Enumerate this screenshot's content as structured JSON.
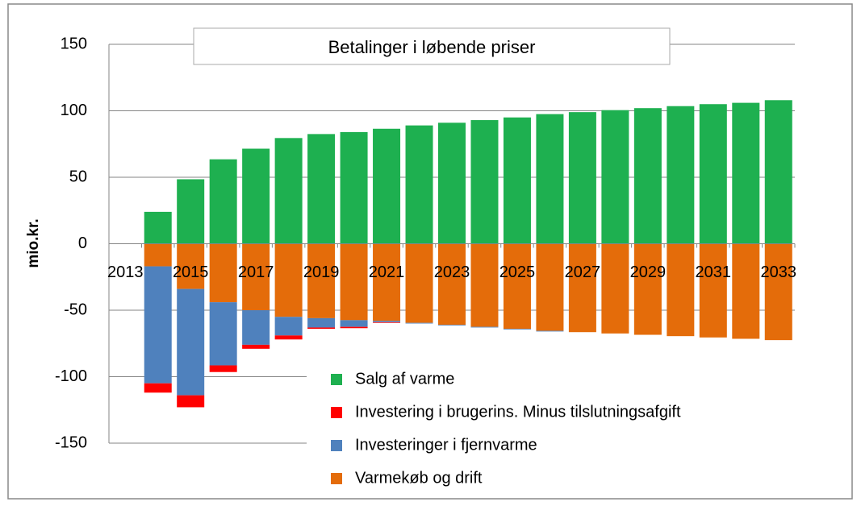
{
  "chart_data": {
    "type": "bar",
    "stacked": true,
    "title": "Betalinger i løbende priser",
    "y_label": "mio.kr.",
    "categories": [
      "2013",
      null,
      "2015",
      null,
      "2017",
      null,
      "2019",
      null,
      "2021",
      null,
      "2023",
      null,
      "2025",
      null,
      "2027",
      null,
      "2029",
      null,
      "2031",
      null,
      "2033"
    ],
    "series": [
      {
        "name": "Salg af varme",
        "color": "#1eb050",
        "values": [
          null,
          24,
          48.5,
          63.5,
          71.5,
          79.5,
          82.5,
          84,
          86.5,
          89,
          91,
          93,
          95,
          97.5,
          99,
          100.5,
          102,
          103.5,
          105,
          106,
          108
        ]
      },
      {
        "name": "Investering i brugerins. Minus tilslutningsafgift",
        "color": "#ff0000",
        "values": [
          null,
          -7,
          -9,
          -5,
          -3,
          -3,
          -1,
          -1,
          -0.5,
          0,
          0,
          0,
          0,
          0,
          0,
          0,
          0,
          0,
          0,
          0,
          0
        ]
      },
      {
        "name": "Investeringer i fjernvarme",
        "color": "#4f81bd",
        "values": [
          null,
          -88,
          -80,
          -47.5,
          -26,
          -14,
          -7,
          -5,
          -1,
          -0.5,
          -0.5,
          -0.5,
          -0.5,
          -0.5,
          0,
          0,
          0,
          0,
          0,
          0,
          0
        ]
      },
      {
        "name": "Varmekøb og drift",
        "color": "#e46c0a",
        "values": [
          null,
          -17,
          -34,
          -44,
          -50,
          -55,
          -56,
          -57.5,
          -58,
          -59.5,
          -61,
          -62.5,
          -64,
          -65.5,
          -66.5,
          -67.5,
          -68.5,
          -69.5,
          -70.5,
          -71.5,
          -72.5
        ]
      }
    ],
    "ylim": [
      -150,
      150
    ],
    "yticks": [
      -150,
      -100,
      -50,
      0,
      50,
      100,
      150
    ],
    "grid": true
  }
}
